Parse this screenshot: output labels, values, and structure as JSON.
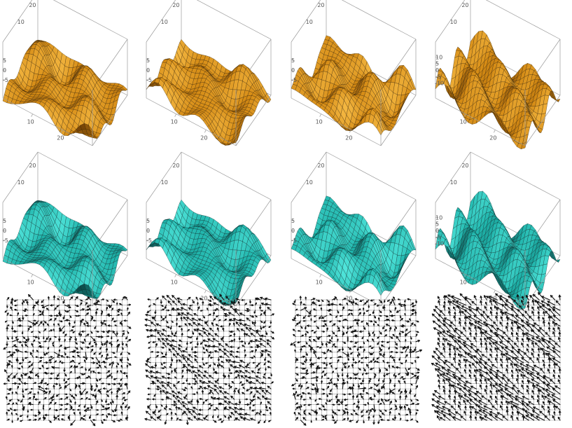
{
  "figure": {
    "rows": [
      {
        "kind": "surface",
        "colors": {
          "light": "#f3b640",
          "mid": "#d48a14",
          "dark": "#6a3c05",
          "line": "#3a2406"
        },
        "panels": [
          {
            "z_ticks": [
              "5",
              "0",
              "-5"
            ],
            "z_range": [
              -7,
              7
            ],
            "x_ticks": [
              "10",
              "20"
            ],
            "y_ticks": [
              "10",
              "20"
            ]
          },
          {
            "z_ticks": [
              "5",
              "0",
              "-5"
            ],
            "z_range": [
              -7,
              7
            ],
            "x_ticks": [
              "10",
              "20"
            ],
            "y_ticks": [
              "10",
              "20"
            ]
          },
          {
            "z_ticks": [
              "5",
              "0",
              "-5"
            ],
            "z_range": [
              -7,
              7
            ],
            "x_ticks": [
              "10",
              "20"
            ],
            "y_ticks": [
              "10",
              "20"
            ]
          },
          {
            "z_ticks": [
              "10",
              "5",
              "0",
              "-5",
              "-10"
            ],
            "z_range": [
              -12,
              12
            ],
            "x_ticks": [
              "10",
              "20"
            ],
            "y_ticks": [
              "10",
              "20"
            ]
          }
        ]
      },
      {
        "kind": "surface",
        "colors": {
          "light": "#4fe4da",
          "mid": "#1fb3aa",
          "dark": "#0a3f3e",
          "line": "#0c2a29"
        },
        "panels": [
          {
            "z_ticks": [
              "5",
              "0",
              "-5"
            ],
            "z_range": [
              -7,
              7
            ],
            "x_ticks": [
              "10",
              "20"
            ],
            "y_ticks": [
              "10",
              "20"
            ]
          },
          {
            "z_ticks": [
              "5",
              "0",
              "-5"
            ],
            "z_range": [
              -7,
              7
            ],
            "x_ticks": [
              "10",
              "20"
            ],
            "y_ticks": [
              "10",
              "20"
            ]
          },
          {
            "z_ticks": [
              "5",
              "0",
              "-5"
            ],
            "z_range": [
              -7,
              7
            ],
            "x_ticks": [
              "10",
              "20"
            ],
            "y_ticks": [
              "10",
              "20"
            ]
          },
          {
            "z_ticks": [
              "10",
              "5",
              "0",
              "-5",
              "-10"
            ],
            "z_range": [
              -12,
              12
            ],
            "x_ticks": [
              "10",
              "20"
            ],
            "y_ticks": [
              "10",
              "20"
            ]
          }
        ]
      },
      {
        "kind": "vector_field",
        "grid_size": 24,
        "panels": [
          {
            "pattern": "weak"
          },
          {
            "pattern": "diagonal-bands"
          },
          {
            "pattern": "weak"
          },
          {
            "pattern": "strong-diagonal-bands"
          }
        ]
      }
    ]
  }
}
